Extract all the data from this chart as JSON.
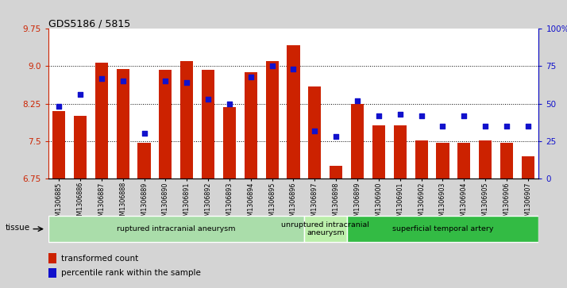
{
  "title": "GDS5186 / 5815",
  "samples": [
    "GSM1306885",
    "GSM1306886",
    "GSM1306887",
    "GSM1306888",
    "GSM1306889",
    "GSM1306890",
    "GSM1306891",
    "GSM1306892",
    "GSM1306893",
    "GSM1306894",
    "GSM1306895",
    "GSM1306896",
    "GSM1306897",
    "GSM1306898",
    "GSM1306899",
    "GSM1306900",
    "GSM1306901",
    "GSM1306902",
    "GSM1306903",
    "GSM1306904",
    "GSM1306905",
    "GSM1306906",
    "GSM1306907"
  ],
  "transformed_count": [
    8.1,
    8.0,
    9.07,
    8.95,
    7.46,
    8.93,
    9.1,
    8.93,
    8.18,
    8.88,
    9.1,
    9.42,
    8.6,
    7.0,
    8.25,
    7.82,
    7.82,
    7.52,
    7.47,
    7.47,
    7.52,
    7.47,
    7.2
  ],
  "percentile_rank": [
    48,
    56,
    67,
    65,
    30,
    65,
    64,
    53,
    50,
    68,
    75,
    73,
    32,
    28,
    52,
    42,
    43,
    42,
    35,
    42,
    35,
    35,
    35
  ],
  "ylim_left": [
    6.75,
    9.75
  ],
  "ylim_right": [
    0,
    100
  ],
  "yticks_left": [
    6.75,
    7.5,
    8.25,
    9.0,
    9.75
  ],
  "yticks_right": [
    0,
    25,
    50,
    75,
    100
  ],
  "ytick_labels_right": [
    "0",
    "25",
    "50",
    "75",
    "100%"
  ],
  "bar_color": "#cc2200",
  "scatter_color": "#1111cc",
  "background_color": "#d4d4d4",
  "plot_bg_color": "#ffffff",
  "groups": [
    {
      "label": "ruptured intracranial aneurysm",
      "start": 0,
      "end": 12,
      "color": "#aaddaa"
    },
    {
      "label": "unruptured intracranial\naneurysm",
      "start": 12,
      "end": 14,
      "color": "#bbeeaa"
    },
    {
      "label": "superficial temporal artery",
      "start": 14,
      "end": 23,
      "color": "#33bb44"
    }
  ],
  "tissue_label": "tissue",
  "legend_bar_label": "transformed count",
  "legend_scatter_label": "percentile rank within the sample",
  "figsize": [
    7.14,
    3.63
  ],
  "dpi": 100
}
